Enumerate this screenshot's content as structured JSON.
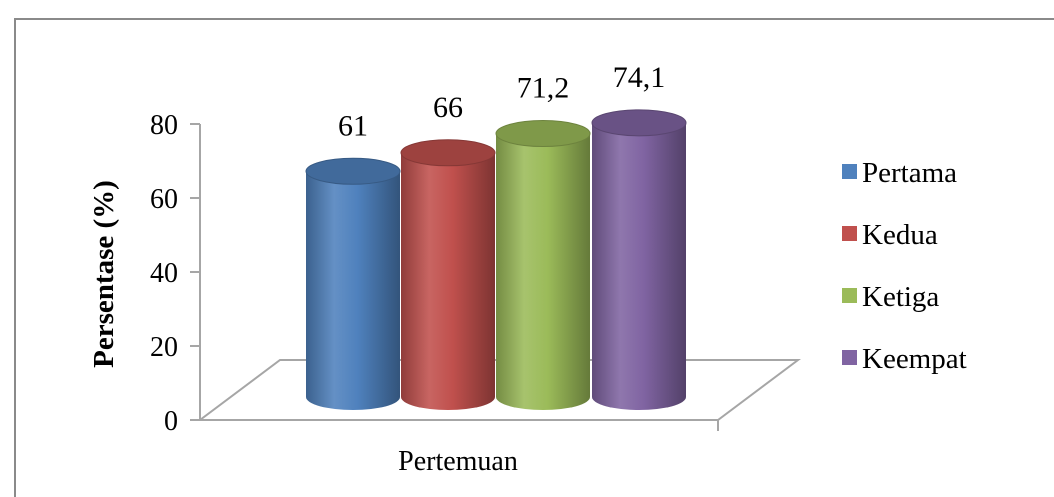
{
  "chart_data": {
    "type": "bar",
    "xlabel": "Pertemuan",
    "ylabel": "Persentase (%)",
    "ylim": [
      0,
      80
    ],
    "yticks": [
      "0",
      "20",
      "40",
      "60",
      "80"
    ],
    "grid": false,
    "legend_position": "right",
    "series": [
      {
        "name": "Pertama",
        "value": 61,
        "label": "61",
        "color": "#4f81bd"
      },
      {
        "name": "Kedua",
        "value": 66,
        "label": "66",
        "color": "#c0504d"
      },
      {
        "name": "Ketiga",
        "value": 71.2,
        "label": "71,2",
        "color": "#9bbb59"
      },
      {
        "name": "Keempat",
        "value": 74.1,
        "label": "74,1",
        "color": "#8064a2"
      }
    ]
  }
}
